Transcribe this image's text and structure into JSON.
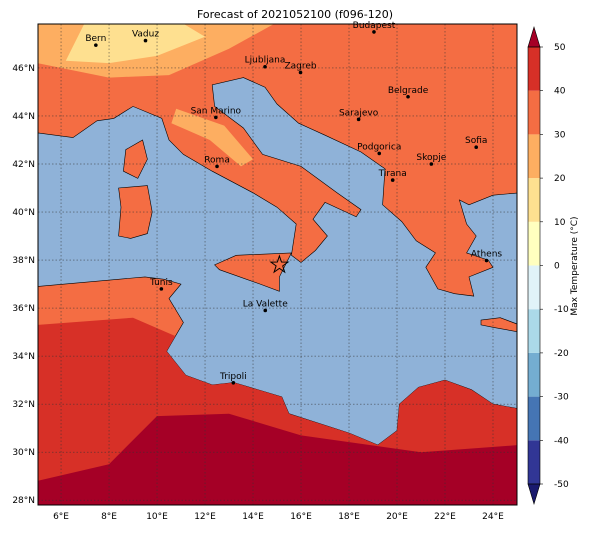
{
  "title": "Forecast of 2021052100 (f096-120)",
  "map": {
    "lonlim": [
      5.04,
      25
    ],
    "latlim": [
      27.8,
      47.83
    ],
    "lonticks": [
      {
        "value": 6,
        "label": "6°E"
      },
      {
        "value": 8,
        "label": "8°E"
      },
      {
        "value": 10,
        "label": "10°E"
      },
      {
        "value": 12,
        "label": "12°E"
      },
      {
        "value": 14,
        "label": "14°E"
      },
      {
        "value": 16,
        "label": "16°E"
      },
      {
        "value": 18,
        "label": "18°E"
      },
      {
        "value": 20,
        "label": "20°E"
      },
      {
        "value": 22,
        "label": "22°E"
      },
      {
        "value": 24,
        "label": "24°E"
      }
    ],
    "latticks": [
      {
        "value": 28,
        "label": "28°N"
      },
      {
        "value": 30,
        "label": "30°N"
      },
      {
        "value": 32,
        "label": "32°N"
      },
      {
        "value": 34,
        "label": "34°N"
      },
      {
        "value": 36,
        "label": "36°N"
      },
      {
        "value": 38,
        "label": "38°N"
      },
      {
        "value": 40,
        "label": "40°N"
      },
      {
        "value": 42,
        "label": "42°N"
      },
      {
        "value": 44,
        "label": "44°N"
      },
      {
        "value": 46,
        "label": "46°N"
      }
    ],
    "grid": true,
    "cities": [
      "Bern",
      "Vaduz",
      "Budapest",
      "Ljubljana",
      "Zagreb",
      "Belgrade",
      "San Marino",
      "Sarajevo",
      "Sofia",
      "Podgorica",
      "Skopje",
      "Roma",
      "Tirana",
      "Athens",
      "Tunis",
      "La Valette",
      "Tripoli"
    ]
  },
  "colorbar": {
    "label": "Max Temperature (°C)",
    "clim": [
      -50,
      50
    ],
    "ticks": [
      -50,
      -40,
      -30,
      -20,
      -10,
      0,
      10,
      20,
      30,
      40,
      50
    ],
    "colors": [
      "#313695",
      "#4575b4",
      "#74add1",
      "#abd9e9",
      "#e0f3f8",
      "#ffffbf",
      "#fee090",
      "#fdae61",
      "#f46d43",
      "#d73027"
    ],
    "under_color": "#1a1a6e",
    "over_color": "#a50026"
  }
}
